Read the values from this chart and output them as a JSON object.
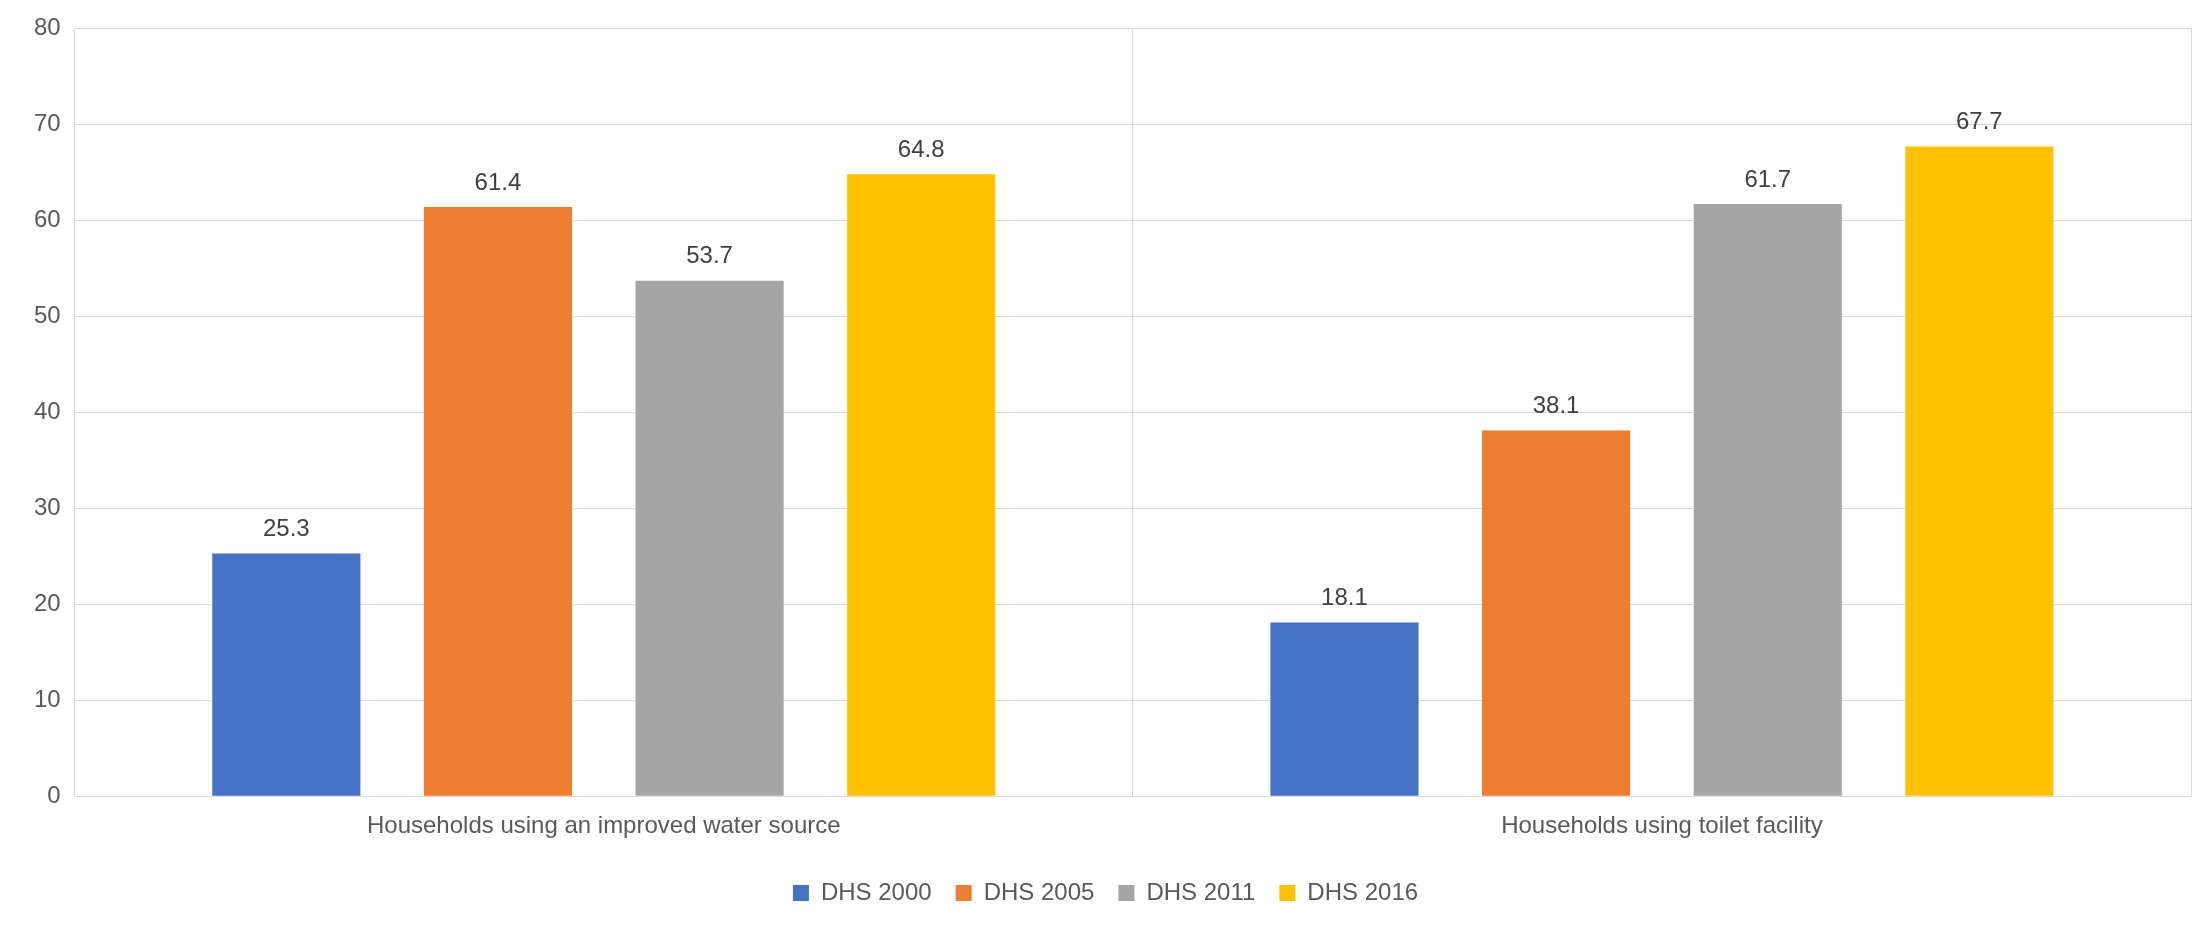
{
  "chart_data": {
    "type": "bar",
    "categories": [
      "Households using an improved water source",
      "Households using toilet facility"
    ],
    "series": [
      {
        "name": "DHS 2000",
        "color": "#4472c4",
        "values": [
          25.3,
          18.1
        ]
      },
      {
        "name": "DHS 2005",
        "color": "#ed7d31",
        "values": [
          61.4,
          38.1
        ]
      },
      {
        "name": "DHS 2011",
        "color": "#a5a5a5",
        "values": [
          53.7,
          61.7
        ]
      },
      {
        "name": "DHS 2016",
        "color": "#ffc000",
        "values": [
          64.8,
          67.7
        ]
      }
    ],
    "ylim": [
      0,
      80
    ],
    "yticks": [
      0,
      10,
      20,
      30,
      40,
      50,
      60,
      70,
      80
    ],
    "grid": true,
    "legend": "bottom",
    "data_labels": true
  }
}
